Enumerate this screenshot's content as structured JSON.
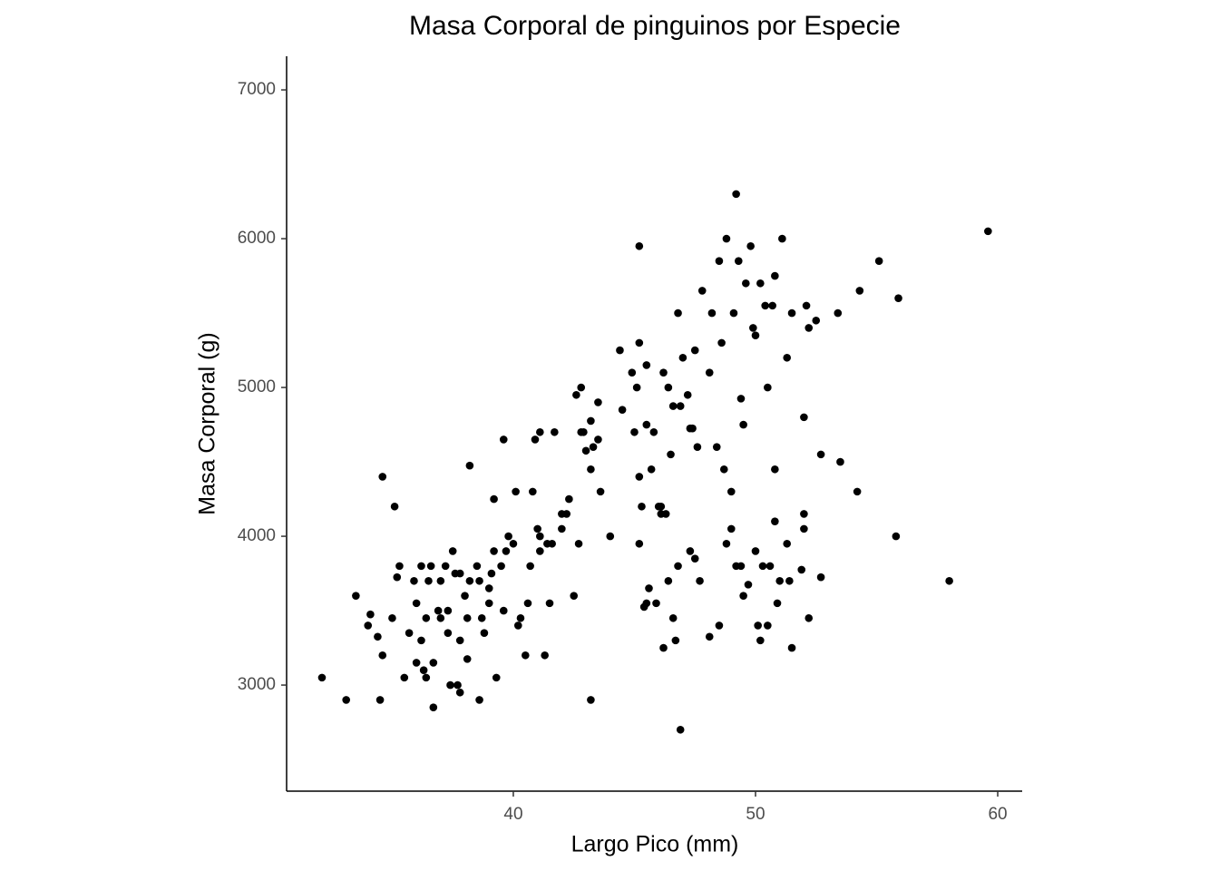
{
  "chart_data": {
    "type": "scatter",
    "title": "Masa Corporal de pinguinos por Especie",
    "x_label": "Largo Pico (mm)",
    "y_label": "Masa Corporal (g)",
    "xlim": [
      30.64,
      61.01
    ],
    "ylim": [
      2287,
      7226
    ],
    "xticks": [
      40,
      50,
      60
    ],
    "yticks": [
      3000,
      4000,
      5000,
      6000,
      7000
    ],
    "grid": false,
    "color": "#000000",
    "x": [
      32.1,
      33.1,
      33.5,
      34.0,
      34.1,
      34.4,
      34.5,
      34.6,
      34.6,
      35.0,
      35.1,
      35.2,
      35.3,
      35.5,
      35.7,
      35.9,
      36.0,
      36.0,
      36.2,
      36.2,
      36.3,
      36.4,
      36.4,
      36.5,
      36.6,
      36.7,
      36.7,
      36.9,
      37.0,
      37.0,
      37.2,
      37.3,
      37.3,
      37.4,
      37.5,
      37.6,
      37.7,
      37.8,
      37.8,
      37.8,
      38.0,
      38.1,
      38.2,
      38.1,
      38.2,
      38.5,
      38.6,
      38.6,
      38.7,
      38.8,
      39.0,
      39.0,
      39.1,
      39.2,
      39.2,
      39.3,
      39.5,
      39.6,
      39.6,
      39.7,
      39.8,
      40.0,
      40.1,
      40.2,
      40.3,
      40.5,
      40.6,
      40.7,
      40.8,
      41.0,
      41.1,
      41.1,
      41.1,
      41.3,
      41.4,
      41.5,
      41.6,
      42.0,
      42.2,
      42.3,
      42.5,
      42.7,
      43.0,
      43.2,
      42.9,
      43.2,
      43.5,
      40.9,
      41.7,
      42.0,
      42.6,
      42.8,
      42.8,
      43.2,
      43.3,
      43.5,
      43.6,
      44.0,
      44.4,
      44.5,
      44.9,
      45.0,
      45.1,
      45.2,
      45.2,
      45.2,
      45.3,
      45.5,
      45.5,
      45.7,
      45.8,
      46.1,
      46.2,
      46.3,
      46.4,
      46.5,
      46.6,
      46.8,
      46.9,
      47.0,
      47.2,
      47.4,
      47.5,
      47.6,
      47.8,
      48.1,
      48.2,
      48.4,
      48.5,
      48.6,
      48.7,
      48.8,
      49.0,
      49.1,
      49.2,
      49.3,
      49.4,
      49.5,
      49.6,
      49.8,
      49.9,
      50.0,
      50.2,
      50.4,
      50.5,
      50.7,
      50.8,
      51.1,
      51.3,
      51.5,
      52.0,
      52.1,
      52.2,
      52.5,
      53.4,
      54.3,
      55.1,
      55.9,
      59.6,
      52.7,
      53.5,
      54.2,
      55.8,
      58.0,
      47.3,
      45.2,
      45.4,
      45.5,
      45.6,
      45.9,
      46.0,
      46.1,
      46.2,
      46.4,
      46.6,
      46.8,
      46.7,
      46.9,
      47.3,
      47.5,
      47.7,
      48.1,
      48.5,
      48.8,
      49.0,
      49.2,
      49.4,
      49.5,
      49.7,
      50.0,
      50.1,
      50.2,
      50.3,
      50.5,
      50.6,
      50.8,
      51.0,
      51.3,
      51.4,
      51.5,
      51.9,
      52.0,
      52.0,
      52.2,
      52.7,
      50.8,
      50.9
    ],
    "values": [
      3050,
      2900,
      3600,
      3400,
      3475,
      3325,
      2900,
      3200,
      4400,
      3450,
      4200,
      3725,
      3800,
      3050,
      3350,
      3700,
      3150,
      3550,
      3800,
      3300,
      3100,
      3450,
      3050,
      3700,
      3800,
      3150,
      2850,
      3500,
      3700,
      3450,
      3800,
      3350,
      3500,
      3000,
      3900,
      3750,
      3000,
      2950,
      3750,
      3300,
      3600,
      3450,
      3700,
      3175,
      4475,
      3800,
      3700,
      2900,
      3450,
      3350,
      3650,
      3550,
      3750,
      3900,
      4250,
      3050,
      3800,
      3500,
      4650,
      3900,
      4000,
      3950,
      4300,
      3400,
      3450,
      3200,
      3550,
      3800,
      4300,
      4050,
      4000,
      4700,
      3900,
      3200,
      3950,
      3550,
      3950,
      4050,
      4150,
      4250,
      3600,
      3950,
      4575,
      4775,
      4700,
      2900,
      4650,
      4650,
      4700,
      4150,
      4950,
      4700,
      5000,
      4450,
      4600,
      4900,
      4300,
      4000,
      5250,
      4850,
      5100,
      4700,
      5000,
      4400,
      5300,
      5950,
      4200,
      4750,
      5150,
      4450,
      4700,
      4200,
      5100,
      4150,
      5000,
      4550,
      4875,
      5500,
      4875,
      5200,
      4950,
      4725,
      5250,
      4600,
      5650,
      5100,
      5500,
      4600,
      5850,
      5300,
      4450,
      6000,
      4300,
      5500,
      6300,
      5850,
      4925,
      4750,
      5700,
      5950,
      5400,
      5350,
      5700,
      5550,
      5000,
      5550,
      5750,
      6000,
      5200,
      5500,
      4800,
      5550,
      5400,
      5450,
      5500,
      5650,
      5850,
      5600,
      6050,
      4550,
      4500,
      4300,
      4000,
      3700,
      4725,
      3950,
      3525,
      3550,
      3650,
      3550,
      4200,
      4150,
      3250,
      3700,
      3450,
      3800,
      3300,
      2700,
      3900,
      3850,
      3700,
      3325,
      3400,
      3950,
      4050,
      3800,
      3800,
      3600,
      3675,
      3900,
      3400,
      3300,
      3800,
      3400,
      3800,
      4100,
      3700,
      3950,
      3700,
      3250,
      3775,
      4150,
      4050,
      3450,
      3725,
      4450,
      3550
    ]
  }
}
